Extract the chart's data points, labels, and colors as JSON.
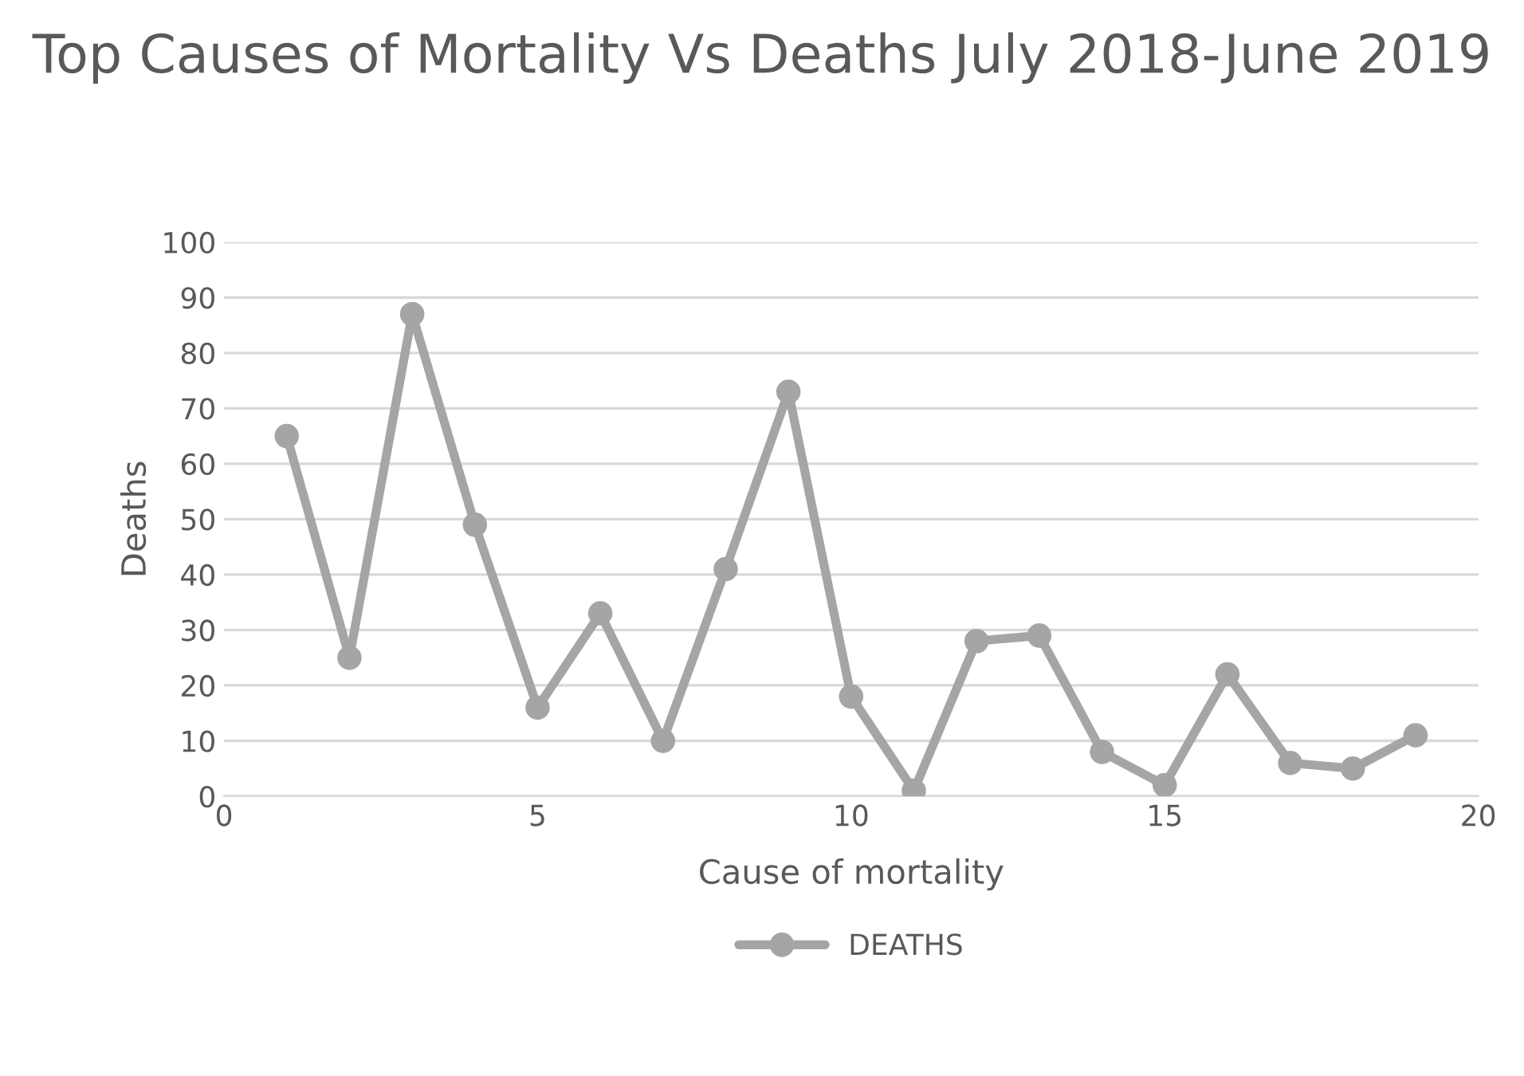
{
  "chart_data": {
    "type": "line",
    "title": "Top Causes of Mortality Vs Deaths July 2018-June 2019",
    "xlabel": "Cause of mortality",
    "ylabel": "Deaths",
    "x": [
      1,
      2,
      3,
      4,
      5,
      6,
      7,
      8,
      9,
      10,
      11,
      12,
      13,
      14,
      15,
      16,
      17,
      18,
      19
    ],
    "series": [
      {
        "name": "DEATHS",
        "color": "#a5a5a5",
        "values": [
          65,
          25,
          87,
          49,
          16,
          33,
          10,
          41,
          73,
          18,
          1,
          28,
          29,
          8,
          2,
          22,
          6,
          5,
          11
        ]
      }
    ],
    "xlim": [
      0,
      20
    ],
    "xticks": [
      0,
      5,
      10,
      15,
      20
    ],
    "ylim": [
      0,
      100
    ],
    "yticks": [
      0,
      10,
      20,
      30,
      40,
      50,
      60,
      70,
      80,
      90,
      100
    ],
    "grid": "y",
    "legend": "bottom",
    "marker": "circle",
    "line_style": "solid"
  }
}
